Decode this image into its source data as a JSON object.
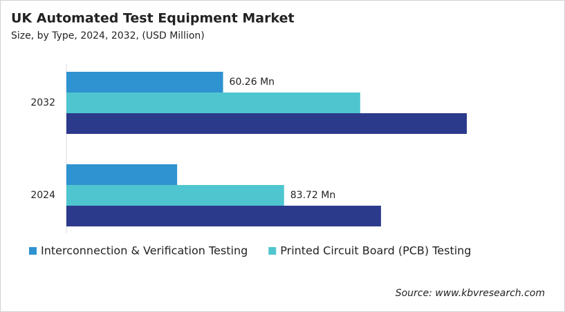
{
  "chart_data": {
    "type": "bar",
    "orientation": "horizontal",
    "title": "UK Automated Test Equipment Market",
    "subtitle": "Size, by Type, 2024, 2032, (USD Million)",
    "source": "Source: www.kbvresearch.com",
    "categories": [
      "2032",
      "2024"
    ],
    "series": [
      {
        "name": "Interconnection & Verification Testing",
        "color": "#2e93d0",
        "values": [
          60.26,
          42.6
        ],
        "value_labels": [
          "60.26 Mn",
          null
        ]
      },
      {
        "name": "Printed Circuit Board (PCB) Testing",
        "color": "#4fc6cf",
        "values": [
          113,
          83.72
        ],
        "value_labels": [
          null,
          "83.72 Mn"
        ]
      },
      {
        "color": "#2c3a8c",
        "values": [
          154,
          121
        ]
      }
    ]
  }
}
